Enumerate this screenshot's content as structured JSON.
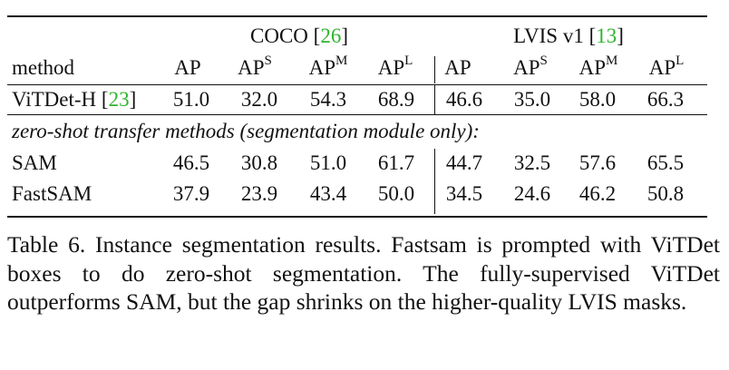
{
  "table": {
    "groups": [
      {
        "name": "COCO",
        "cite": "26"
      },
      {
        "name": "LVIS v1",
        "cite": "13"
      }
    ],
    "header": {
      "method": "method",
      "ap": "AP",
      "ap_base": "AP",
      "sup_s": "S",
      "sup_m": "M",
      "sup_l": "L"
    },
    "rows": [
      {
        "method": "ViTDet-H",
        "cite": "23",
        "values": [
          "51.0",
          "32.0",
          "54.3",
          "68.9",
          "46.6",
          "35.0",
          "58.0",
          "66.3"
        ]
      },
      {
        "section": "zero-shot transfer methods (segmentation module only):"
      },
      {
        "method": "SAM",
        "values": [
          "46.5",
          "30.8",
          "51.0",
          "61.7",
          "44.7",
          "32.5",
          "57.6",
          "65.5"
        ]
      },
      {
        "method": "FastSAM",
        "values": [
          "37.9",
          "23.9",
          "43.4",
          "50.0",
          "34.5",
          "24.6",
          "46.2",
          "50.8"
        ]
      }
    ]
  },
  "caption": "Table 6. Instance segmentation results. Fastsam is prompted with ViTDet boxes to do zero-shot segmentation. The fully-supervised ViTDet outperforms SAM, but the gap shrinks on the higher-quality LVIS masks."
}
